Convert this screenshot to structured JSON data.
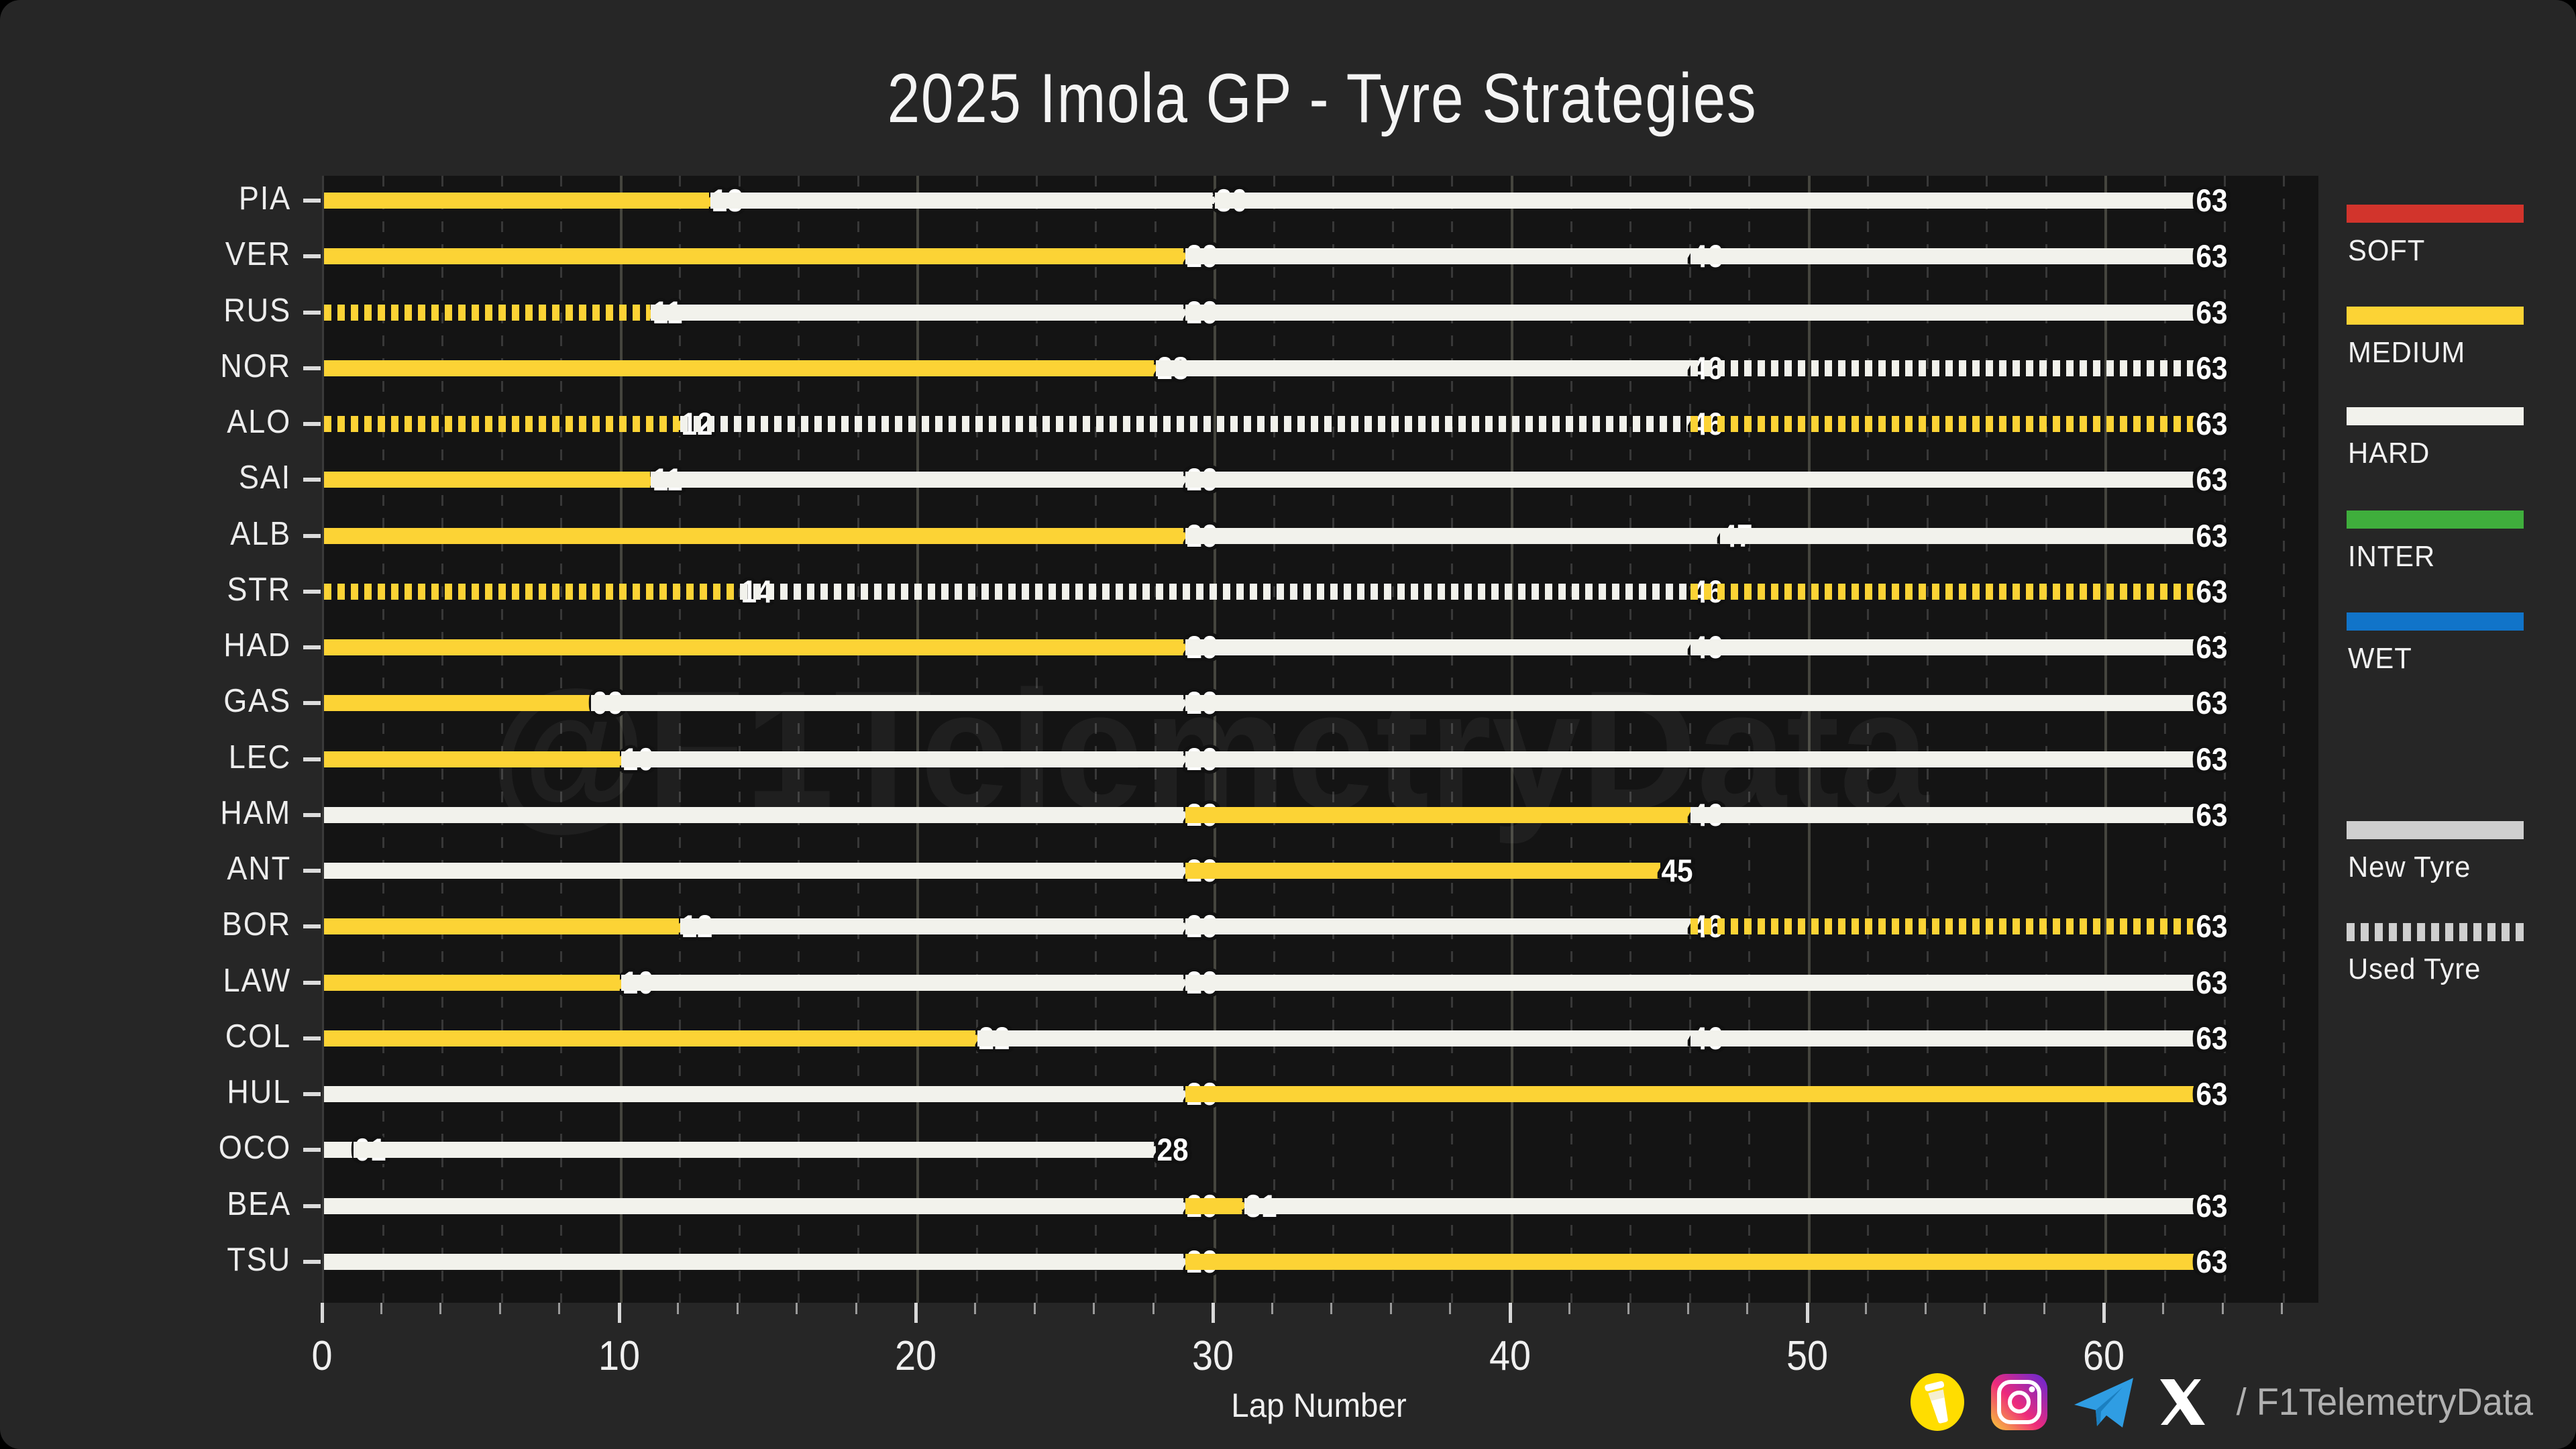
{
  "title": "2025 Imola GP - Tyre Strategies",
  "watermark": "@F1TelemetryData",
  "footer": {
    "handle": "/ F1TelemetryData",
    "icons": [
      "buymeacoffee-icon",
      "instagram-icon",
      "telegram-icon",
      "x-icon"
    ]
  },
  "legend": {
    "compounds": [
      {
        "label": "SOFT",
        "color": "#d2342c"
      },
      {
        "label": "MEDIUM",
        "color": "#fcd335"
      },
      {
        "label": "HARD",
        "color": "#f2f2ec"
      },
      {
        "label": "INTER",
        "color": "#3fae3c"
      },
      {
        "label": "WET",
        "color": "#1174c9"
      }
    ],
    "usage": [
      {
        "label": "New Tyre",
        "style": "solid"
      },
      {
        "label": "Used Tyre",
        "style": "dashed"
      }
    ],
    "usage_swatch_color": "#cfcfcf"
  },
  "chart_data": {
    "type": "bar",
    "subtype": "horizontal-stint-timeline",
    "title": "2025 Imola GP - Tyre Strategies",
    "xlabel": "Lap Number",
    "axis": {
      "min": 0,
      "max": 67.15,
      "major_ticks": [
        0,
        10,
        20,
        30,
        40,
        50,
        60
      ],
      "minor_step": 2
    },
    "legend_position": "right",
    "grid": true,
    "drivers": [
      {
        "code": "PIA",
        "stints": [
          {
            "compound": "MEDIUM",
            "start": 0,
            "end": 13,
            "used": false,
            "label": "13"
          },
          {
            "compound": "HARD",
            "start": 13,
            "end": 30,
            "used": false,
            "label": "30"
          },
          {
            "compound": "HARD",
            "start": 30,
            "end": 63,
            "used": false,
            "label": "63"
          }
        ]
      },
      {
        "code": "VER",
        "stints": [
          {
            "compound": "MEDIUM",
            "start": 0,
            "end": 29,
            "used": false,
            "label": "29"
          },
          {
            "compound": "HARD",
            "start": 29,
            "end": 46,
            "used": false,
            "label": "46"
          },
          {
            "compound": "HARD",
            "start": 46,
            "end": 63,
            "used": false,
            "label": "63"
          }
        ]
      },
      {
        "code": "RUS",
        "stints": [
          {
            "compound": "MEDIUM",
            "start": 0,
            "end": 11,
            "used": true,
            "label": "11"
          },
          {
            "compound": "HARD",
            "start": 11,
            "end": 29,
            "used": false,
            "label": "29"
          },
          {
            "compound": "HARD",
            "start": 29,
            "end": 63,
            "used": false,
            "label": "63"
          }
        ]
      },
      {
        "code": "NOR",
        "stints": [
          {
            "compound": "MEDIUM",
            "start": 0,
            "end": 28,
            "used": false,
            "label": "28"
          },
          {
            "compound": "HARD",
            "start": 28,
            "end": 46,
            "used": false,
            "label": "46"
          },
          {
            "compound": "HARD",
            "start": 46,
            "end": 63,
            "used": true,
            "label": "63"
          }
        ]
      },
      {
        "code": "ALO",
        "stints": [
          {
            "compound": "MEDIUM",
            "start": 0,
            "end": 12,
            "used": true,
            "label": "12"
          },
          {
            "compound": "HARD",
            "start": 12,
            "end": 46,
            "used": true,
            "label": "46"
          },
          {
            "compound": "MEDIUM",
            "start": 46,
            "end": 63,
            "used": true,
            "label": "63"
          }
        ]
      },
      {
        "code": "SAI",
        "stints": [
          {
            "compound": "MEDIUM",
            "start": 0,
            "end": 11,
            "used": false,
            "label": "11"
          },
          {
            "compound": "HARD",
            "start": 11,
            "end": 29,
            "used": false,
            "label": "29"
          },
          {
            "compound": "HARD",
            "start": 29,
            "end": 63,
            "used": false,
            "label": "63"
          }
        ]
      },
      {
        "code": "ALB",
        "stints": [
          {
            "compound": "MEDIUM",
            "start": 0,
            "end": 29,
            "used": false,
            "label": "29"
          },
          {
            "compound": "HARD",
            "start": 29,
            "end": 47,
            "used": false,
            "label": "47"
          },
          {
            "compound": "HARD",
            "start": 47,
            "end": 63,
            "used": false,
            "label": "63"
          }
        ]
      },
      {
        "code": "STR",
        "stints": [
          {
            "compound": "MEDIUM",
            "start": 0,
            "end": 14,
            "used": true,
            "label": "14"
          },
          {
            "compound": "HARD",
            "start": 14,
            "end": 46,
            "used": true,
            "label": "46"
          },
          {
            "compound": "MEDIUM",
            "start": 46,
            "end": 63,
            "used": true,
            "label": "63"
          }
        ]
      },
      {
        "code": "HAD",
        "stints": [
          {
            "compound": "MEDIUM",
            "start": 0,
            "end": 29,
            "used": false,
            "label": "29"
          },
          {
            "compound": "HARD",
            "start": 29,
            "end": 46,
            "used": false,
            "label": "46"
          },
          {
            "compound": "HARD",
            "start": 46,
            "end": 63,
            "used": false,
            "label": "63"
          }
        ]
      },
      {
        "code": "GAS",
        "stints": [
          {
            "compound": "MEDIUM",
            "start": 0,
            "end": 9,
            "used": false,
            "label": "09"
          },
          {
            "compound": "HARD",
            "start": 9,
            "end": 29,
            "used": false,
            "label": "29"
          },
          {
            "compound": "HARD",
            "start": 29,
            "end": 63,
            "used": false,
            "label": "63"
          }
        ]
      },
      {
        "code": "LEC",
        "stints": [
          {
            "compound": "MEDIUM",
            "start": 0,
            "end": 10,
            "used": false,
            "label": "10"
          },
          {
            "compound": "HARD",
            "start": 10,
            "end": 29,
            "used": false,
            "label": "29"
          },
          {
            "compound": "HARD",
            "start": 29,
            "end": 63,
            "used": false,
            "label": "63"
          }
        ]
      },
      {
        "code": "HAM",
        "stints": [
          {
            "compound": "HARD",
            "start": 0,
            "end": 29,
            "used": false,
            "label": "29"
          },
          {
            "compound": "MEDIUM",
            "start": 29,
            "end": 46,
            "used": false,
            "label": "46"
          },
          {
            "compound": "HARD",
            "start": 46,
            "end": 63,
            "used": false,
            "label": "63"
          }
        ]
      },
      {
        "code": "ANT",
        "stints": [
          {
            "compound": "HARD",
            "start": 0,
            "end": 29,
            "used": false,
            "label": "29"
          },
          {
            "compound": "MEDIUM",
            "start": 29,
            "end": 45,
            "used": false,
            "label": "45"
          }
        ]
      },
      {
        "code": "BOR",
        "stints": [
          {
            "compound": "MEDIUM",
            "start": 0,
            "end": 12,
            "used": false,
            "label": "12"
          },
          {
            "compound": "HARD",
            "start": 12,
            "end": 29,
            "used": false,
            "label": "29"
          },
          {
            "compound": "HARD",
            "start": 29,
            "end": 46,
            "used": false,
            "label": "46"
          },
          {
            "compound": "MEDIUM",
            "start": 46,
            "end": 63,
            "used": true,
            "label": "63"
          }
        ]
      },
      {
        "code": "LAW",
        "stints": [
          {
            "compound": "MEDIUM",
            "start": 0,
            "end": 10,
            "used": false,
            "label": "10"
          },
          {
            "compound": "HARD",
            "start": 10,
            "end": 29,
            "used": false,
            "label": "29"
          },
          {
            "compound": "HARD",
            "start": 29,
            "end": 63,
            "used": false,
            "label": "63"
          }
        ]
      },
      {
        "code": "COL",
        "stints": [
          {
            "compound": "MEDIUM",
            "start": 0,
            "end": 22,
            "used": false,
            "label": "22"
          },
          {
            "compound": "HARD",
            "start": 22,
            "end": 46,
            "used": false,
            "label": "46"
          },
          {
            "compound": "HARD",
            "start": 46,
            "end": 63,
            "used": false,
            "label": "63"
          }
        ]
      },
      {
        "code": "HUL",
        "stints": [
          {
            "compound": "HARD",
            "start": 0,
            "end": 29,
            "used": false,
            "label": "29"
          },
          {
            "compound": "MEDIUM",
            "start": 29,
            "end": 63,
            "used": false,
            "label": "63"
          }
        ]
      },
      {
        "code": "OCO",
        "stints": [
          {
            "compound": "HARD",
            "start": 0,
            "end": 1,
            "used": false,
            "label": "01"
          },
          {
            "compound": "HARD",
            "start": 1,
            "end": 28,
            "used": false,
            "label": "28"
          }
        ]
      },
      {
        "code": "BEA",
        "stints": [
          {
            "compound": "HARD",
            "start": 0,
            "end": 29,
            "used": false,
            "label": "29"
          },
          {
            "compound": "MEDIUM",
            "start": 29,
            "end": 31,
            "used": false,
            "label": "31"
          },
          {
            "compound": "HARD",
            "start": 31,
            "end": 63,
            "used": false,
            "label": "63"
          }
        ]
      },
      {
        "code": "TSU",
        "stints": [
          {
            "compound": "HARD",
            "start": 0,
            "end": 29,
            "used": false,
            "label": "29"
          },
          {
            "compound": "MEDIUM",
            "start": 29,
            "end": 63,
            "used": false,
            "label": "63"
          }
        ]
      }
    ]
  }
}
